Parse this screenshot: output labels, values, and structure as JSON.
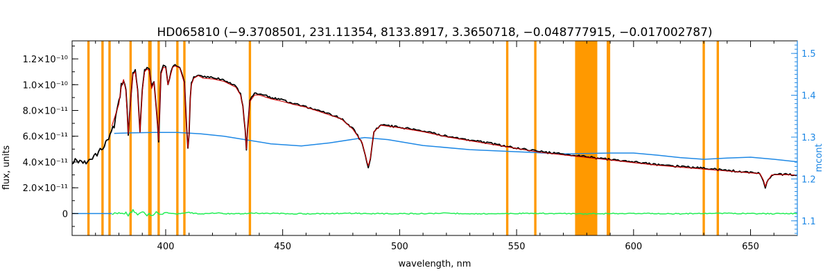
{
  "chart_data": {
    "type": "line",
    "title": "HD065810    (−9.3708501, 231.11354, 8133.8917, 3.3650718, −0.048777915, −0.017002787)",
    "xlabel": "wavelength, nm",
    "ylabel": "flux, units",
    "y2label": "mcont",
    "xlim": [
      360,
      670
    ],
    "ylim": [
      -1.7e-11,
      1.34e-10
    ],
    "y2lim": [
      1.065,
      1.53
    ],
    "x_ticks": [
      400,
      450,
      500,
      550,
      600,
      650
    ],
    "y_ticks": [
      {
        "value": 1.2e-10,
        "label": "1.2×10⁻¹⁰"
      },
      {
        "value": 1e-10,
        "label": "1.0×10⁻¹⁰"
      },
      {
        "value": 8e-11,
        "label": "8.0×10⁻¹¹"
      },
      {
        "value": 6e-11,
        "label": "6.0×10⁻¹¹"
      },
      {
        "value": 4e-11,
        "label": "4.0×10⁻¹¹"
      },
      {
        "value": 2e-11,
        "label": "2.0×10⁻¹¹"
      },
      {
        "value": 0,
        "label": "0"
      }
    ],
    "y2_ticks": [
      {
        "value": 1.1,
        "label": "1.1"
      },
      {
        "value": 1.2,
        "label": "1.2"
      },
      {
        "value": 1.3,
        "label": "1.3"
      },
      {
        "value": 1.4,
        "label": "1.4"
      },
      {
        "value": 1.5,
        "label": "1.5"
      }
    ],
    "masked_regions": [
      [
        366.5,
        367.5
      ],
      [
        372.5,
        373.5
      ],
      [
        375.5,
        376.5
      ],
      [
        384.5,
        385.5
      ],
      [
        392.5,
        394.0
      ],
      [
        396.5,
        397.5
      ],
      [
        404.5,
        405.5
      ],
      [
        407.5,
        408.5
      ],
      [
        435.5,
        436.5
      ],
      [
        545.5,
        546.5
      ],
      [
        557.5,
        558.5
      ],
      [
        575.0,
        584.5
      ],
      [
        588.5,
        590.0
      ],
      [
        629.5,
        630.5
      ],
      [
        635.5,
        636.5
      ]
    ],
    "series": [
      {
        "role": "observed",
        "color": "#000000",
        "x": [
          360,
          368,
          372,
          375,
          378,
          380,
          381,
          382,
          383,
          384,
          385,
          386,
          387,
          388,
          389,
          390,
          391,
          392,
          393,
          394,
          395,
          396,
          397,
          398,
          399,
          400,
          401,
          403,
          404,
          406,
          408,
          409,
          409.5,
          410,
          410.5,
          411,
          412,
          414,
          416,
          420,
          425,
          430,
          432,
          433,
          434,
          434.5,
          435,
          436,
          438,
          440,
          445,
          450,
          455,
          460,
          465,
          470,
          475,
          480,
          484,
          486,
          486.6,
          487.5,
          489,
          492,
          500,
          510,
          520,
          530,
          540,
          550,
          560,
          570,
          580,
          590,
          600,
          610,
          620,
          630,
          640,
          650,
          654,
          655.5,
          656.3,
          657,
          659,
          665,
          670
        ],
        "y": [
          4.1e-11,
          4.1e-11,
          4.9e-11,
          5.6e-11,
          6.9e-11,
          8.6e-11,
          9.9e-11,
          1.05e-10,
          9.6e-11,
          6.2e-11,
          8.8e-11,
          1.09e-10,
          1.11e-10,
          9.6e-11,
          6.3e-11,
          9.6e-11,
          1.11e-10,
          1.13e-10,
          1.12e-10,
          9.8e-11,
          1.03e-10,
          8.2e-11,
          5.6e-11,
          1.09e-10,
          1.145e-10,
          1.14e-10,
          1e-10,
          1.145e-10,
          1.155e-10,
          1.14e-10,
          1.02e-10,
          6.6e-11,
          5e-11,
          6.2e-11,
          9e-11,
          1.01e-10,
          1.06e-10,
          1.08e-10,
          1.06e-10,
          1.055e-10,
          1.035e-10,
          9.9e-11,
          9.3e-11,
          8.3e-11,
          6.5e-11,
          4.9e-11,
          6.5e-11,
          8.8e-11,
          9.3e-11,
          9.3e-11,
          9e-11,
          8.8e-11,
          8.5e-11,
          8.3e-11,
          8e-11,
          7.7e-11,
          7.4e-11,
          6.6e-11,
          5.5e-11,
          4e-11,
          3.6e-11,
          4.3e-11,
          6.4e-11,
          6.9e-11,
          6.7e-11,
          6.4e-11,
          6e-11,
          5.7e-11,
          5.4e-11,
          5.1e-11,
          4.8e-11,
          4.6e-11,
          4.4e-11,
          4.2e-11,
          4e-11,
          3.8e-11,
          3.65e-11,
          3.5e-11,
          3.35e-11,
          3.2e-11,
          3.15e-11,
          2.55e-11,
          2e-11,
          2.4e-11,
          3e-11,
          3.05e-11,
          3e-11
        ]
      },
      {
        "role": "model",
        "color": "#cc0000",
        "x": [
          377,
          380,
          381,
          382,
          383,
          384,
          385,
          386,
          387,
          388,
          389,
          390,
          391,
          392,
          393,
          394,
          395,
          396,
          397,
          398,
          399,
          400,
          401,
          403,
          404,
          406,
          408,
          409,
          409.5,
          410,
          410.5,
          411,
          412,
          414,
          416,
          420,
          425,
          430,
          432,
          433,
          434,
          434.5,
          435,
          436,
          438,
          440,
          445,
          450,
          455,
          460,
          465,
          470,
          475,
          480,
          484,
          486,
          486.6,
          487.5,
          489,
          492,
          500,
          510,
          520,
          530,
          540,
          550,
          560,
          570,
          580,
          590,
          600,
          610,
          620,
          630,
          640,
          650,
          654,
          655.5,
          656.3,
          657,
          659,
          665,
          670
        ],
        "y": [
          6.8e-11,
          8.5e-11,
          9.8e-11,
          1.04e-10,
          9.5e-11,
          6.2e-11,
          8.7e-11,
          1.08e-10,
          1.1e-10,
          9.5e-11,
          6.3e-11,
          9.5e-11,
          1.1e-10,
          1.12e-10,
          1.11e-10,
          9.7e-11,
          1.02e-10,
          8.1e-11,
          5.7e-11,
          1.08e-10,
          1.135e-10,
          1.13e-10,
          1e-10,
          1.135e-10,
          1.145e-10,
          1.13e-10,
          1.01e-10,
          6.6e-11,
          5.1e-11,
          6.2e-11,
          8.9e-11,
          1e-10,
          1.05e-10,
          1.07e-10,
          1.05e-10,
          1.045e-10,
          1.025e-10,
          9.8e-11,
          9.2e-11,
          8.3e-11,
          6.5e-11,
          5e-11,
          6.5e-11,
          8.7e-11,
          9.2e-11,
          9.2e-11,
          8.9e-11,
          8.7e-11,
          8.45e-11,
          8.25e-11,
          7.95e-11,
          7.65e-11,
          7.35e-11,
          6.55e-11,
          5.5e-11,
          4.05e-11,
          3.7e-11,
          4.3e-11,
          6.35e-11,
          6.85e-11,
          6.65e-11,
          6.35e-11,
          5.95e-11,
          5.65e-11,
          5.35e-11,
          5.05e-11,
          4.75e-11,
          4.55e-11,
          4.35e-11,
          4.15e-11,
          3.95e-11,
          3.75e-11,
          3.6e-11,
          3.45e-11,
          3.3e-11,
          3.15e-11,
          3.1e-11,
          2.6e-11,
          2.1e-11,
          2.45e-11,
          3e-11,
          3.02e-11,
          2.98e-11
        ]
      },
      {
        "role": "residual",
        "color": "#22ee55",
        "x": [
          377,
          380,
          382,
          383,
          384,
          385,
          386,
          388,
          390,
          392,
          393,
          394,
          396,
          398,
          400,
          405,
          410,
          415,
          420,
          430,
          440,
          460,
          480,
          500,
          520,
          540,
          560,
          580,
          600,
          620,
          640,
          660,
          670
        ],
        "y": [
          0,
          4e-13,
          -6e-13,
          8e-13,
          -1.2e-12,
          5e-13,
          2.5e-12,
          -5e-13,
          1.2e-12,
          -1.4e-12,
          2e-13,
          -1.9e-12,
          9e-13,
          -8e-13,
          6e-13,
          -4e-13,
          7e-13,
          -5e-13,
          4e-13,
          -3e-13,
          3e-13,
          -2e-13,
          2e-13,
          -2e-13,
          2e-13,
          -2e-13,
          2e-13,
          -2e-13,
          2e-13,
          -2e-13,
          2e-13,
          -2e-13,
          1e-13
        ]
      },
      {
        "role": "mcont",
        "axis": "right",
        "color": "#1e88e5",
        "x": [
          378,
          385,
          395,
          405,
          415,
          425,
          435,
          445,
          458,
          470,
          485,
          495,
          510,
          530,
          550,
          570,
          580,
          590,
          600,
          610,
          620,
          630,
          640,
          650,
          660,
          670
        ],
        "y": [
          1.309,
          1.31,
          1.311,
          1.311,
          1.308,
          1.302,
          1.293,
          1.284,
          1.279,
          1.286,
          1.299,
          1.294,
          1.28,
          1.27,
          1.265,
          1.26,
          1.261,
          1.262,
          1.262,
          1.257,
          1.251,
          1.247,
          1.25,
          1.252,
          1.247,
          1.241
        ]
      },
      {
        "role": "zero",
        "color": "#1e88e5",
        "x": [
          360,
          377
        ],
        "y": [
          0,
          0
        ]
      }
    ]
  }
}
